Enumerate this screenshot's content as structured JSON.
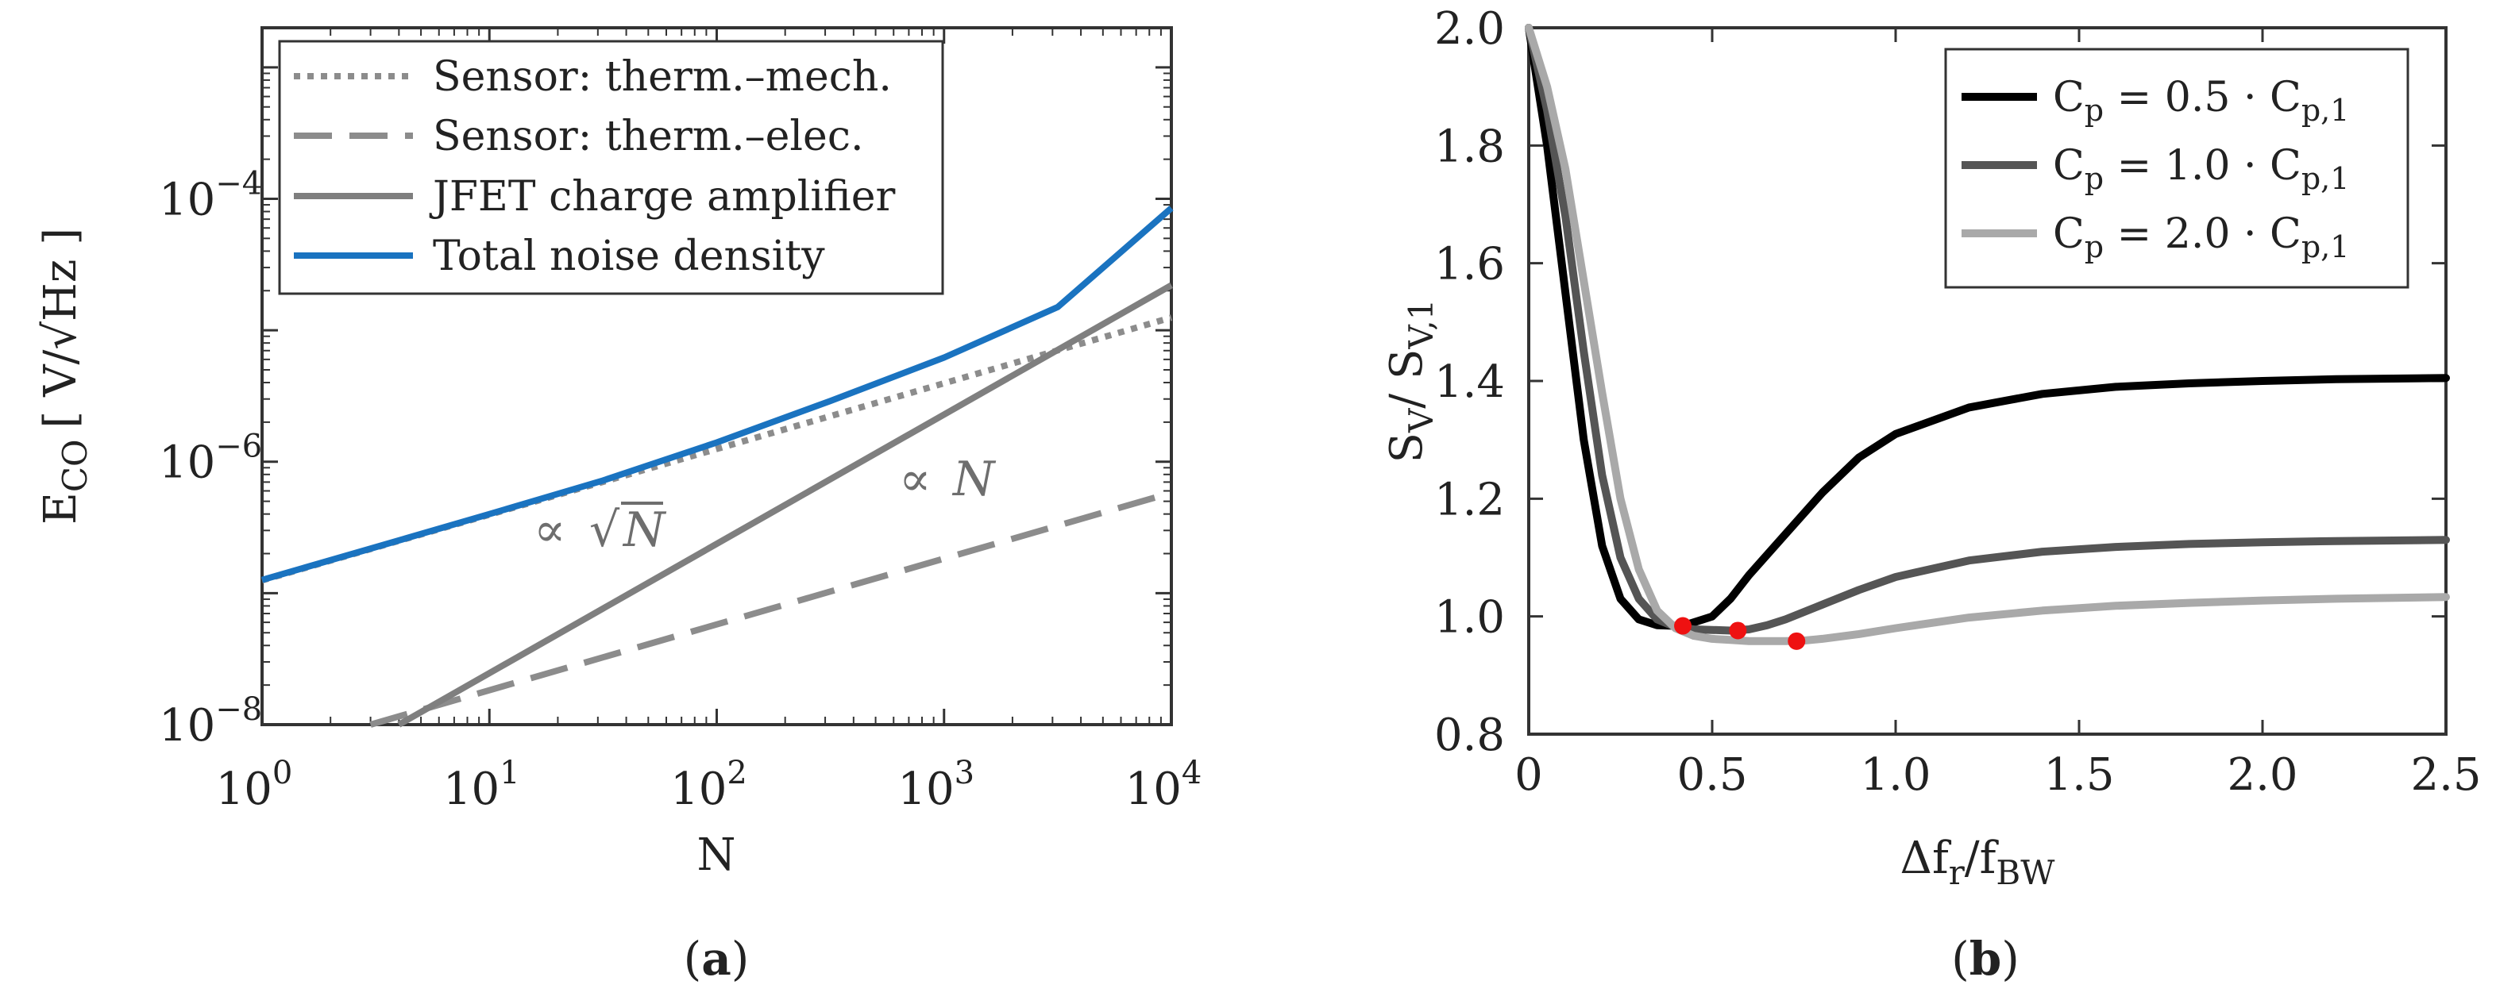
{
  "chart_data": [
    {
      "id": "a",
      "type": "line",
      "caption_open": "(",
      "caption_letter": "a",
      "caption_close": ")",
      "xscale": "log",
      "yscale": "log",
      "xlim": [
        1,
        10000
      ],
      "ylim": [
        1e-08,
        0.002
      ],
      "xlabel": "N",
      "ylabel_main": "E",
      "ylabel_sub": "CO",
      "ylabel_unit": "[ V/√Hz ]",
      "xticks": [
        {
          "value": 1,
          "base": "10",
          "exp": "0"
        },
        {
          "value": 10,
          "base": "10",
          "exp": "1"
        },
        {
          "value": 100,
          "base": "10",
          "exp": "2"
        },
        {
          "value": 1000,
          "base": "10",
          "exp": "3"
        },
        {
          "value": 10000,
          "base": "10",
          "exp": "4"
        }
      ],
      "yticks": [
        {
          "value": 1e-08,
          "base": "10",
          "exp": "−8"
        },
        {
          "value": 1e-06,
          "base": "10",
          "exp": "−6"
        },
        {
          "value": 0.0001,
          "base": "10",
          "exp": "−4"
        }
      ],
      "series": [
        {
          "name": "Sensor: therm.–mech.",
          "style": "dotted",
          "color": "#8c8c8c",
          "x": [
            1,
            10000
          ],
          "y": [
            1.25e-07,
            1.25e-05
          ]
        },
        {
          "name": "Sensor: therm.–elec.",
          "style": "dashed",
          "color": "#8c8c8c",
          "x": [
            3,
            10000
          ],
          "y": [
            1e-08,
            5.8e-07
          ]
        },
        {
          "name": "JFET charge amplifier",
          "style": "solid",
          "color": "#7f7f7f",
          "x": [
            4,
            10000
          ],
          "y": [
            1e-08,
            2.2e-05
          ]
        },
        {
          "name": "Total noise density",
          "style": "solid",
          "color": "#1a73c0",
          "x": [
            1,
            3.16,
            10,
            31.6,
            100,
            316,
            1000,
            3162,
            10000
          ],
          "y": [
            1.26e-07,
            2.24e-07,
            4e-07,
            7.2e-07,
            1.4e-06,
            2.9e-06,
            6.2e-06,
            1.5e-05,
            8.5e-05
          ]
        }
      ],
      "annotations": [
        {
          "prefix": "∝ ",
          "text": "N",
          "sqrt": true,
          "at_x": 18,
          "at_y": 1.3e-07
        },
        {
          "prefix": "∝ ",
          "text": "N",
          "sqrt": false,
          "at_x": 700,
          "at_y": 8e-07
        }
      ]
    },
    {
      "id": "b",
      "type": "line",
      "caption_open": "(",
      "caption_letter": "b",
      "caption_close": ")",
      "xlim": [
        0,
        2.5
      ],
      "ylim": [
        0.8,
        2.0
      ],
      "xlabel_parts": {
        "delta": "Δf",
        "sub1": "r",
        "slash": "/f",
        "sub2": "BW"
      },
      "ylabel_parts": {
        "s1": "S",
        "sub1": "V",
        "slash": "/ S",
        "sub2": "V,1"
      },
      "xticks": [
        0,
        0.5,
        1.0,
        1.5,
        2.0,
        2.5
      ],
      "xtick_labels": [
        "0",
        "0.5",
        "1.0",
        "1.5",
        "2.0",
        "2.5"
      ],
      "yticks": [
        0.8,
        1.0,
        1.2,
        1.4,
        1.6,
        1.8,
        2.0
      ],
      "ytick_labels": [
        "0.8",
        "1.0",
        "1.2",
        "1.4",
        "1.6",
        "1.8",
        "2.0"
      ],
      "series": [
        {
          "name": "Cp = 0.5 · Cp,1",
          "legend": {
            "c": "C",
            "p": "p",
            "eq": " = 0.5 · C",
            "sub": "p,1"
          },
          "color": "#000000",
          "x": [
            0,
            0.05,
            0.1,
            0.15,
            0.2,
            0.25,
            0.3,
            0.35,
            0.4,
            0.42,
            0.45,
            0.5,
            0.55,
            0.6,
            0.7,
            0.8,
            0.9,
            1.0,
            1.2,
            1.4,
            1.6,
            1.8,
            2.0,
            2.2,
            2.5
          ],
          "y": [
            2.0,
            1.8,
            1.55,
            1.3,
            1.12,
            1.03,
            0.995,
            0.985,
            0.984,
            0.984,
            0.99,
            1.0,
            1.03,
            1.07,
            1.14,
            1.21,
            1.27,
            1.31,
            1.355,
            1.378,
            1.39,
            1.396,
            1.4,
            1.403,
            1.405
          ],
          "optimum": {
            "x": 0.42,
            "y": 0.984
          }
        },
        {
          "name": "Cp = 1.0 · Cp,1",
          "legend": {
            "c": "C",
            "p": "p",
            "eq": " = 1.0 · C",
            "sub": "p,1"
          },
          "color": "#555555",
          "x": [
            0,
            0.05,
            0.1,
            0.15,
            0.2,
            0.25,
            0.3,
            0.35,
            0.4,
            0.45,
            0.5,
            0.55,
            0.6,
            0.65,
            0.7,
            0.8,
            0.9,
            1.0,
            1.2,
            1.4,
            1.6,
            1.8,
            2.0,
            2.2,
            2.5
          ],
          "y": [
            2.0,
            1.86,
            1.68,
            1.45,
            1.24,
            1.1,
            1.03,
            0.995,
            0.982,
            0.978,
            0.977,
            0.976,
            0.978,
            0.985,
            0.995,
            1.02,
            1.045,
            1.067,
            1.095,
            1.11,
            1.118,
            1.123,
            1.126,
            1.128,
            1.13
          ],
          "optimum": {
            "x": 0.57,
            "y": 0.976
          }
        },
        {
          "name": "Cp = 2.0 · Cp,1",
          "legend": {
            "c": "C",
            "p": "p",
            "eq": " = 2.0 · C",
            "sub": "p,1"
          },
          "color": "#a9a9a9",
          "x": [
            0,
            0.05,
            0.1,
            0.15,
            0.2,
            0.25,
            0.3,
            0.35,
            0.4,
            0.45,
            0.5,
            0.55,
            0.6,
            0.65,
            0.7,
            0.75,
            0.8,
            0.9,
            1.0,
            1.2,
            1.4,
            1.6,
            1.8,
            2.0,
            2.2,
            2.5
          ],
          "y": [
            2.0,
            1.9,
            1.76,
            1.57,
            1.38,
            1.2,
            1.08,
            1.01,
            0.98,
            0.967,
            0.962,
            0.96,
            0.958,
            0.958,
            0.958,
            0.959,
            0.962,
            0.97,
            0.98,
            0.998,
            1.01,
            1.018,
            1.023,
            1.027,
            1.03,
            1.033
          ],
          "optimum": {
            "x": 0.73,
            "y": 0.958
          }
        }
      ],
      "marker_color": "#ee1111"
    }
  ]
}
